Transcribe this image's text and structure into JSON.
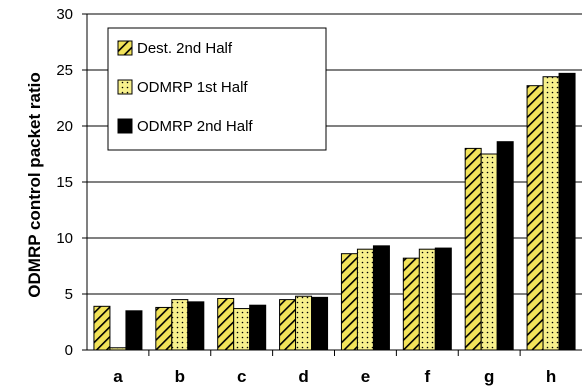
{
  "chart_data": {
    "type": "bar",
    "title": "",
    "xlabel": "",
    "ylabel": "ODMRP control packet ratio",
    "ylim": [
      0,
      30
    ],
    "yticks": [
      0,
      5,
      10,
      15,
      20,
      25,
      30
    ],
    "grid": "horizontal",
    "legend_position": "top-left",
    "categories": [
      "a",
      "b",
      "c",
      "d",
      "e",
      "f",
      "g",
      "h"
    ],
    "series": [
      {
        "name": "Dest. 2nd Half",
        "pattern": "diagonal-hatch",
        "color": "#f2e35a",
        "values": [
          3.9,
          3.8,
          4.6,
          4.5,
          8.6,
          8.2,
          18.0,
          23.6
        ]
      },
      {
        "name": "ODMRP 1st Half",
        "pattern": "dotted",
        "color": "#f7f08c",
        "values": [
          0.2,
          4.5,
          3.7,
          4.8,
          9.0,
          9.0,
          17.5,
          24.4
        ]
      },
      {
        "name": "ODMRP 2nd Half",
        "pattern": "solid",
        "color": "#000000",
        "values": [
          3.5,
          4.3,
          4.0,
          4.7,
          9.3,
          9.1,
          18.6,
          24.7
        ]
      }
    ]
  }
}
